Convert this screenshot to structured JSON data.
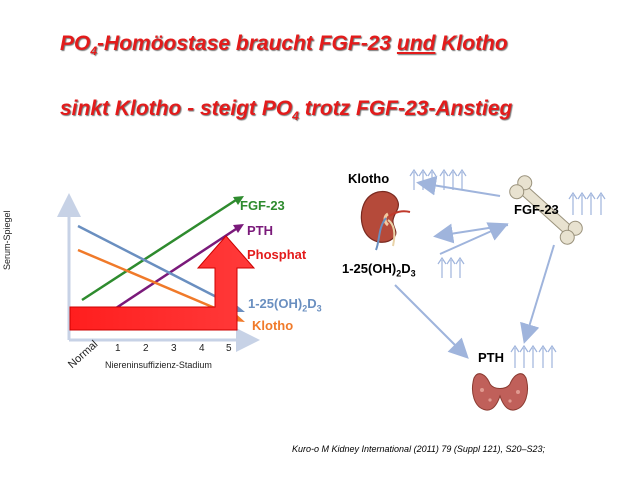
{
  "title": {
    "line1_pre": "PO",
    "line1_sub": "4",
    "line1_mid": "-Homöostase braucht FGF-23 ",
    "line1_und": "und",
    "line1_post": " Klotho",
    "line2_pre": "sinkt Klotho - steigt PO",
    "line2_sub": "4",
    "line2_post": " trotz FGF-23-Anstieg"
  },
  "chart": {
    "ylabel": "Serum-Spiegel",
    "xlabel": "Niereninsuffizienz-Stadium",
    "normal_label": "Normal",
    "ticks": [
      "1",
      "2",
      "3",
      "4",
      "5"
    ]
  },
  "chart_data": {
    "type": "line",
    "title": "",
    "xlabel": "Niereninsuffizienz-Stadium",
    "ylabel": "Serum-Spiegel",
    "categories": [
      "Normal",
      "1",
      "2",
      "3",
      "4",
      "5"
    ],
    "series": [
      {
        "name": "FGF-23",
        "color": "#2e8b2e",
        "trend": "rising"
      },
      {
        "name": "PTH",
        "color": "#7a1a7a",
        "trend": "rising"
      },
      {
        "name": "Phosphat",
        "color": "#e31b1b",
        "trend": "rising"
      },
      {
        "name": "1-25(OH)2D3",
        "color": "#6a8fc0",
        "trend": "falling"
      },
      {
        "name": "Klotho",
        "color": "#f07a2a",
        "trend": "falling"
      }
    ]
  },
  "legend": {
    "fgf23": "FGF-23",
    "pth": "PTH",
    "phosphat": "Phosphat",
    "vitd_pre": "1-25(OH)",
    "vitd_sub1": "2",
    "vitd_mid": "D",
    "vitd_sub2": "3",
    "klotho": "Klotho"
  },
  "diagram": {
    "klotho": "Klotho",
    "fgf23": "FGF-23",
    "vitd_pre": "1-25(OH)",
    "vitd_sub1": "2",
    "vitd_mid": "D",
    "vitd_sub2": "3",
    "pth": "PTH"
  },
  "citation": "Kuro-o M  Kidney International (2011) 79 (Suppl 121), S20–S23;",
  "colors": {
    "title": "#e31b1b",
    "fgf23": "#2e8b2e",
    "pth": "#7a1a7a",
    "phosphat": "#e31b1b",
    "vitd": "#6a8fc0",
    "klotho": "#f07a2a",
    "arrows": "#9fb4dc"
  }
}
